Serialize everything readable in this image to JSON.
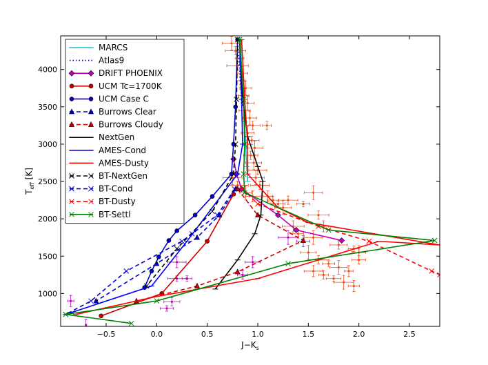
{
  "chart_data": {
    "type": "line",
    "title": "",
    "xlabel": "J−K",
    "xlabel_sub": "s",
    "ylabel": "T",
    "ylabel_sub": "eff",
    "ylabel_unit": "[K]",
    "xlim": [
      -0.95,
      2.8
    ],
    "ylim": [
      560,
      4450
    ],
    "xticks": [
      -0.5,
      0.0,
      0.5,
      1.0,
      1.5,
      2.0,
      2.5
    ],
    "xtick_labels": [
      "−0.5",
      "0.0",
      "0.5",
      "1.0",
      "1.5",
      "2.0",
      "2.5"
    ],
    "yticks": [
      1000,
      1500,
      2000,
      2500,
      3000,
      3500,
      4000
    ],
    "ytick_labels": [
      "1000",
      "1500",
      "2000",
      "2500",
      "3000",
      "3500",
      "4000"
    ],
    "legend_position": "top-left",
    "series": [
      {
        "name": "MARCS",
        "color": "#17becf",
        "style": "solid",
        "marker": "tick",
        "points": [
          [
            0.83,
            4400
          ],
          [
            0.84,
            4000
          ],
          [
            0.86,
            3600
          ],
          [
            0.87,
            3300
          ],
          [
            0.88,
            3000
          ],
          [
            0.89,
            2700
          ],
          [
            0.9,
            2500
          ]
        ]
      },
      {
        "name": "Atlas9",
        "color": "#0000cc",
        "style": "dotted",
        "marker": "none",
        "points": [
          [
            0.8,
            4400
          ],
          [
            0.81,
            4200
          ],
          [
            0.82,
            4000
          ],
          [
            0.83,
            3800
          ],
          [
            0.84,
            3600
          ],
          [
            0.85,
            3500
          ]
        ]
      },
      {
        "name": "DRIFT PHOENIX",
        "color": "#bf00bf",
        "style": "solid",
        "marker": "diamond",
        "points": [
          [
            0.76,
            2800
          ],
          [
            0.79,
            2600
          ],
          [
            0.84,
            2400
          ],
          [
            1.2,
            2050
          ],
          [
            1.38,
            1850
          ],
          [
            1.83,
            1710
          ]
        ]
      },
      {
        "name": "UCM Tc=1700K",
        "color": "#cc0000",
        "style": "solid",
        "marker": "circle",
        "points": [
          [
            0.76,
            2330
          ],
          [
            0.5,
            1700
          ],
          [
            0.05,
            1000
          ],
          [
            -0.55,
            700
          ]
        ]
      },
      {
        "name": "UCM Case C",
        "color": "#0000cc",
        "style": "solid",
        "marker": "circle",
        "points": [
          [
            0.8,
            4400
          ],
          [
            0.78,
            3500
          ],
          [
            0.76,
            3000
          ],
          [
            0.74,
            2600
          ],
          [
            0.55,
            2300
          ],
          [
            0.38,
            2050
          ],
          [
            0.2,
            1840
          ],
          [
            0.12,
            1710
          ],
          [
            0.02,
            1490
          ],
          [
            -0.05,
            1300
          ],
          [
            -0.12,
            1080
          ]
        ]
      },
      {
        "name": "Burrows Clear",
        "color": "#0000cc",
        "style": "dashed",
        "marker": "triangle",
        "points": [
          [
            0.78,
            2400
          ],
          [
            0.62,
            2050
          ],
          [
            0.4,
            1750
          ],
          [
            0.0,
            1400
          ],
          [
            -0.6,
            900
          ]
        ]
      },
      {
        "name": "Burrows Cloudy",
        "color": "#cc0000",
        "style": "dashed",
        "marker": "triangle",
        "points": [
          [
            0.8,
            2400
          ],
          [
            1.0,
            2050
          ],
          [
            1.45,
            1710
          ],
          [
            0.8,
            1290
          ],
          [
            0.4,
            1100
          ],
          [
            -0.2,
            900
          ]
        ]
      },
      {
        "name": "NextGen",
        "color": "#000000",
        "style": "solid",
        "marker": "tick",
        "points": [
          [
            0.82,
            4400
          ],
          [
            0.85,
            3600
          ],
          [
            0.9,
            3100
          ],
          [
            1.0,
            2700
          ],
          [
            1.05,
            2500
          ],
          [
            1.03,
            2050
          ],
          [
            0.97,
            1800
          ],
          [
            0.8,
            1450
          ],
          [
            0.58,
            1060
          ]
        ]
      },
      {
        "name": "AMES-Cond",
        "color": "#0000ff",
        "style": "solid",
        "marker": "tick",
        "points": [
          [
            0.82,
            4400
          ],
          [
            0.84,
            3600
          ],
          [
            0.85,
            3000
          ],
          [
            0.8,
            2600
          ],
          [
            0.3,
            1700
          ],
          [
            -0.05,
            1100
          ],
          [
            -0.9,
            720
          ]
        ]
      },
      {
        "name": "AMES-Dusty",
        "color": "#ff0000",
        "style": "solid",
        "marker": "tick",
        "points": [
          [
            0.84,
            4400
          ],
          [
            0.87,
            3600
          ],
          [
            0.9,
            3000
          ],
          [
            0.9,
            2600
          ],
          [
            1.2,
            2150
          ],
          [
            1.5,
            1950
          ],
          [
            2.8,
            1650
          ],
          [
            2.2,
            1700
          ],
          [
            1.0,
            1200
          ],
          [
            0.0,
            960
          ],
          [
            -0.8,
            720
          ]
        ]
      },
      {
        "name": "BT-NextGen",
        "color": "#000000",
        "style": "dashed",
        "marker": "x",
        "points": [
          [
            0.8,
            4400
          ],
          [
            0.79,
            3600
          ],
          [
            0.78,
            3000
          ],
          [
            0.76,
            2600
          ],
          [
            0.55,
            2100
          ],
          [
            0.2,
            1600
          ],
          [
            -0.1,
            1100
          ]
        ]
      },
      {
        "name": "BT-Cond",
        "color": "#0000cc",
        "style": "dashed",
        "marker": "x",
        "points": [
          [
            0.77,
            2400
          ],
          [
            0.6,
            2050
          ],
          [
            0.35,
            1800
          ],
          [
            0.25,
            1700
          ],
          [
            -0.3,
            1300
          ],
          [
            -0.65,
            900
          ],
          [
            -0.9,
            720
          ]
        ]
      },
      {
        "name": "BT-Dusty",
        "color": "#ff0000",
        "style": "dashed",
        "marker": "x",
        "points": [
          [
            0.85,
            2400
          ],
          [
            1.0,
            2200
          ],
          [
            1.6,
            1900
          ],
          [
            2.1,
            1700
          ],
          [
            2.72,
            1300
          ],
          [
            2.8,
            1250
          ]
        ]
      },
      {
        "name": "BT-Settl",
        "color": "#008000",
        "style": "solid",
        "marker": "x",
        "points": [
          [
            0.82,
            4400
          ],
          [
            0.86,
            3600
          ],
          [
            0.87,
            3000
          ],
          [
            0.86,
            2600
          ],
          [
            0.87,
            2350
          ],
          [
            1.7,
            1850
          ],
          [
            2.75,
            1710
          ],
          [
            1.3,
            1400
          ],
          [
            0.0,
            900
          ],
          [
            -0.9,
            720
          ],
          [
            -0.25,
            600
          ]
        ]
      }
    ],
    "observations": {
      "orange_color": "#e8501e",
      "magenta_color": "#bf00bf",
      "orange": [
        [
          0.74,
          4350
        ],
        [
          0.78,
          4250
        ],
        [
          0.82,
          4150
        ],
        [
          0.8,
          4050
        ],
        [
          0.85,
          3950
        ],
        [
          0.83,
          3850
        ],
        [
          0.88,
          3750
        ],
        [
          0.86,
          3650
        ],
        [
          0.9,
          3550
        ],
        [
          0.87,
          3450
        ],
        [
          0.92,
          3350
        ],
        [
          0.95,
          3250
        ],
        [
          0.9,
          3150
        ],
        [
          0.94,
          3050
        ],
        [
          0.97,
          2950
        ],
        [
          0.93,
          2850
        ],
        [
          0.96,
          2750
        ],
        [
          1.0,
          2650
        ],
        [
          0.98,
          2550
        ],
        [
          1.02,
          2450
        ],
        [
          0.88,
          2350
        ],
        [
          1.1,
          2300
        ],
        [
          1.15,
          2250
        ],
        [
          1.2,
          2200
        ],
        [
          1.25,
          2150
        ],
        [
          1.3,
          2250
        ],
        [
          1.45,
          2200
        ],
        [
          1.55,
          2350
        ],
        [
          1.6,
          2050
        ],
        [
          1.35,
          1900
        ],
        [
          1.4,
          1800
        ],
        [
          1.55,
          1750
        ],
        [
          1.65,
          1900
        ],
        [
          1.8,
          1650
        ],
        [
          1.95,
          1600
        ],
        [
          2.0,
          1550
        ],
        [
          1.5,
          1550
        ],
        [
          1.6,
          1450
        ],
        [
          1.7,
          1400
        ],
        [
          1.8,
          1350
        ],
        [
          1.55,
          1300
        ],
        [
          1.65,
          1250
        ],
        [
          1.9,
          1300
        ],
        [
          2.0,
          1450
        ],
        [
          1.75,
          1200
        ],
        [
          1.85,
          1150
        ],
        [
          1.95,
          1100
        ],
        [
          1.09,
          3250
        ],
        [
          0.75,
          2550
        ],
        [
          0.8,
          2450
        ],
        [
          0.95,
          2300
        ]
      ],
      "magenta": [
        [
          -0.7,
          580
        ],
        [
          -0.85,
          900
        ],
        [
          0.1,
          800
        ],
        [
          0.15,
          890
        ],
        [
          0.2,
          1200
        ],
        [
          0.2,
          1420
        ],
        [
          0.3,
          1200
        ],
        [
          0.85,
          1250
        ],
        [
          0.95,
          1420
        ],
        [
          1.3,
          1750
        ],
        [
          1.45,
          1700
        ]
      ]
    }
  }
}
